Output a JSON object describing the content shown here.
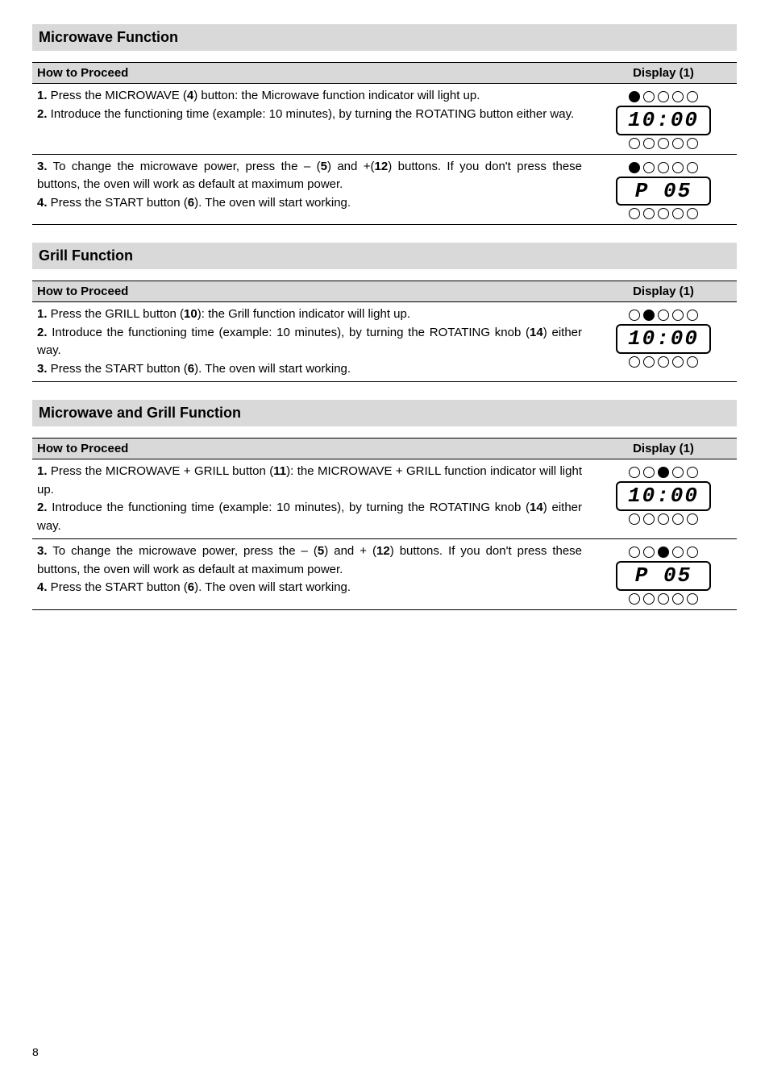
{
  "sections": [
    {
      "title": "Microwave Function",
      "header_left": "How to Proceed",
      "header_right": "Display (1)",
      "groups": [
        {
          "steps": [
            {
              "n": "1.",
              "t": "Press the MICROWAVE (",
              "b1": "4",
              "t2": ") button: the Microwave function indicator will light up."
            },
            {
              "n": "2.",
              "t": "Introduce the functioning time (example: 10 minutes), by turning the ROTATING button either way."
            }
          ],
          "display": {
            "leds": [
              1,
              0,
              0,
              0,
              0
            ],
            "screen": "10:00",
            "leds2": [
              0,
              0,
              0,
              0,
              0
            ]
          }
        },
        {
          "steps": [
            {
              "n": "3.",
              "t": "To change the microwave power, press the – (",
              "b1": "5",
              "t2": ") and +(",
              "b2": "12",
              "t3": ") buttons. If you don't press these buttons, the oven will work as default at maximum power."
            },
            {
              "n": "4.",
              "t": "Press the START button (",
              "b1": "6",
              "t2": "). The oven will start working."
            }
          ],
          "display": {
            "leds": [
              1,
              0,
              0,
              0,
              0
            ],
            "screen": "P   05",
            "leds2": [
              0,
              0,
              0,
              0,
              0
            ]
          }
        }
      ]
    },
    {
      "title": "Grill Function",
      "header_left": "How to Proceed",
      "header_right": "Display (1)",
      "groups": [
        {
          "steps": [
            {
              "n": "1.",
              "t": "Press the GRILL button (",
              "b1": "10",
              "t2": "): the Grill function indicator will light up."
            },
            {
              "n": "2.",
              "t": "Introduce the functioning time (example: 10 minutes), by turning the ROTATING knob (",
              "b1": "14",
              "t2": ") either way."
            },
            {
              "n": "3.",
              "t": "Press the START button (",
              "b1": "6",
              "t2": "). The oven will start working."
            }
          ],
          "display": {
            "leds": [
              0,
              1,
              0,
              0,
              0
            ],
            "screen": "10:00",
            "leds2": [
              0,
              0,
              0,
              0,
              0
            ]
          }
        }
      ]
    },
    {
      "title": "Microwave and Grill Function",
      "header_left": "How to Proceed",
      "header_right": "Display (1)",
      "groups": [
        {
          "steps": [
            {
              "n": "1.",
              "t": "Press the MICROWAVE + GRILL button (",
              "b1": "11",
              "t2": "): the MICROWAVE + GRILL function indicator will light up."
            },
            {
              "n": "2.",
              "t": "Introduce the functioning time (example: 10 minutes), by turning the ROTATING knob (",
              "b1": "14",
              "t2": ") either way."
            }
          ],
          "display": {
            "leds": [
              0,
              0,
              1,
              0,
              0
            ],
            "screen": "10:00",
            "leds2": [
              0,
              0,
              0,
              0,
              0
            ]
          }
        },
        {
          "steps": [
            {
              "n": "3.",
              "t": "To change the microwave power, press the – (",
              "b1": "5",
              "t2": ") and + (",
              "b2": "12",
              "t3": ") buttons. If you don't press these buttons, the oven will work as default at maximum power."
            },
            {
              "n": "4.",
              "t": "Press the START button (",
              "b1": "6",
              "t2": "). The oven will start working."
            }
          ],
          "display": {
            "leds": [
              0,
              0,
              1,
              0,
              0
            ],
            "screen": "P   05",
            "leds2": [
              0,
              0,
              0,
              0,
              0
            ]
          }
        }
      ]
    }
  ],
  "page_number": "8"
}
